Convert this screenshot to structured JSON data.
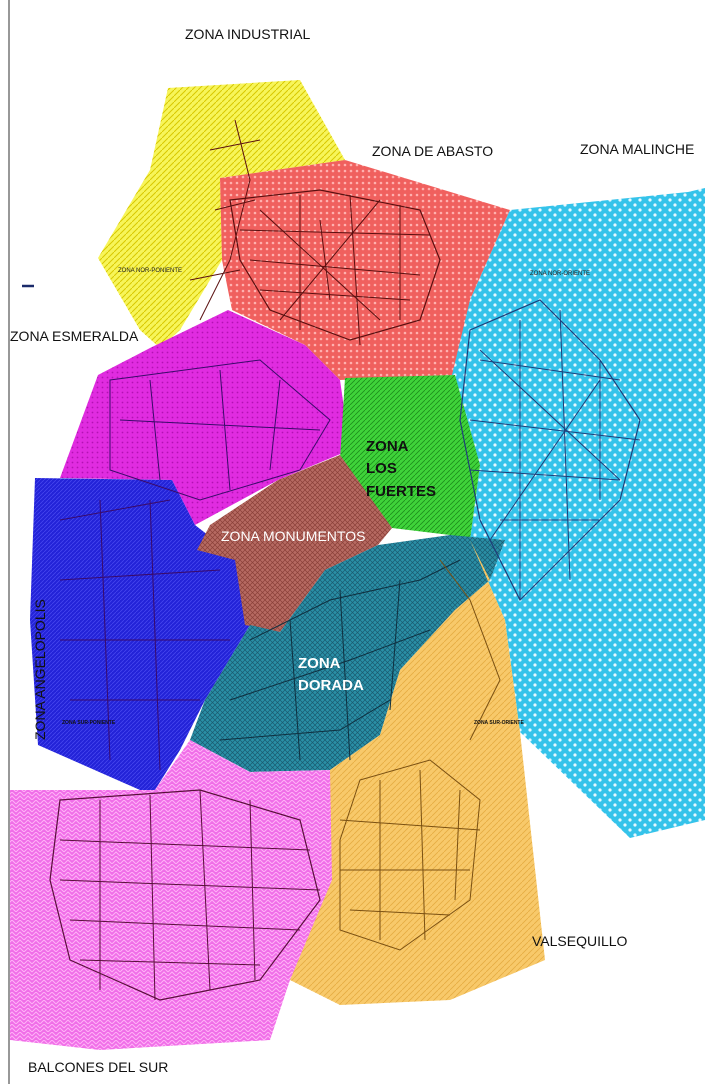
{
  "zones": {
    "industrial": {
      "label": "ZONA INDUSTRIAL",
      "color": "#f7f55a"
    },
    "abasto": {
      "label": "ZONA DE ABASTO",
      "color": "#f0605e"
    },
    "malinche": {
      "label": "ZONA MALINCHE",
      "color": "#35c3ea"
    },
    "esmeralda": {
      "label": "ZONA ESMERALDA",
      "color": "#e02ce0"
    },
    "los_fuertes": {
      "label_lines": [
        "ZONA",
        "LOS",
        "FUERTES"
      ],
      "color": "#3fd33a"
    },
    "monumentos": {
      "label": "ZONA MONUMENTOS",
      "color": "#b66a62"
    },
    "angelopolis": {
      "label": "ZONA ANGELOPOLIS",
      "color": "#2323d8"
    },
    "dorada": {
      "label_lines": [
        "ZONA",
        "DORADA"
      ],
      "color": "#2a8fa6"
    },
    "valsequillo": {
      "label": "VALSEQUILLO",
      "color": "#f8c96a"
    },
    "balcones": {
      "label": "BALCONES DEL SUR",
      "color": "#f06ee8"
    }
  },
  "small_labels": {
    "nor_poniente": "ZONA NOR-PONIENTE",
    "nor_oriente": "ZONA NOR-ORIENTE",
    "sur_poniente": "ZONA SUR-PONIENTE",
    "sur_oriente": "ZONA SUR-ORIENTE"
  },
  "colors": {
    "street_dark": "#5a0f0f",
    "street_blue": "#1f3f7a",
    "street_brown": "#7a5012",
    "border": "#777777"
  }
}
